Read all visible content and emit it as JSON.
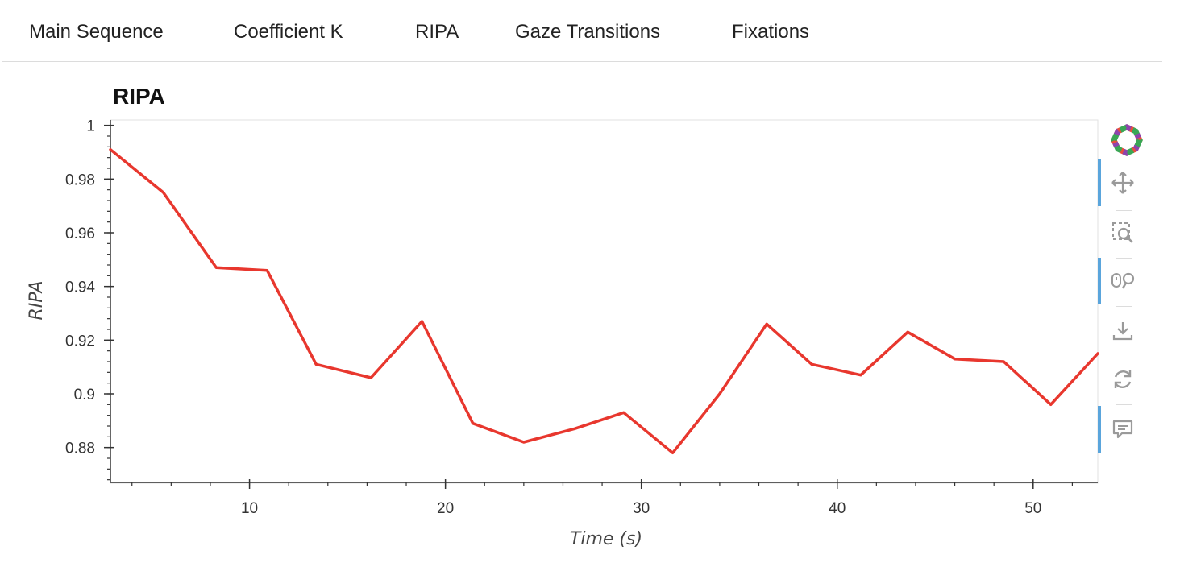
{
  "tabs": [
    {
      "label": "Main Sequence",
      "active": false
    },
    {
      "label": "Coefficient K",
      "active": false
    },
    {
      "label": "RIPA",
      "active": true
    },
    {
      "label": "Gaze Transitions",
      "active": false
    },
    {
      "label": "Fixations",
      "active": false
    }
  ],
  "toolbar": {
    "tools": [
      "bokeh-logo-icon",
      "pan-icon",
      "box-zoom-icon",
      "wheel-zoom-icon",
      "save-icon",
      "reset-icon",
      "hover-icon"
    ],
    "active_accent": "#5aa5dc"
  },
  "chart_data": {
    "type": "line",
    "title": "RIPA",
    "xlabel": "Time (s)",
    "ylabel": "RIPA",
    "color": "#e8372e",
    "xlim": [
      2.9,
      53.3
    ],
    "ylim": [
      0.867,
      1.002
    ],
    "x_ticks": [
      10,
      20,
      30,
      40,
      50
    ],
    "y_ticks": [
      0.88,
      0.9,
      0.92,
      0.94,
      0.96,
      0.98,
      1
    ],
    "y_tick_labels": [
      "0.88",
      "0.9",
      "0.92",
      "0.94",
      "0.96",
      "0.98",
      "1"
    ],
    "grid": false,
    "x": [
      2.9,
      5.6,
      8.3,
      10.9,
      13.4,
      16.2,
      18.8,
      21.4,
      24.0,
      26.6,
      29.1,
      31.6,
      34.0,
      36.4,
      38.7,
      41.2,
      43.6,
      46.0,
      48.5,
      50.9,
      53.3
    ],
    "y": [
      0.991,
      0.975,
      0.947,
      0.946,
      0.911,
      0.906,
      0.927,
      0.889,
      0.882,
      0.887,
      0.893,
      0.878,
      0.9,
      0.926,
      0.911,
      0.907,
      0.923,
      0.913,
      0.912,
      0.896,
      0.915
    ]
  }
}
